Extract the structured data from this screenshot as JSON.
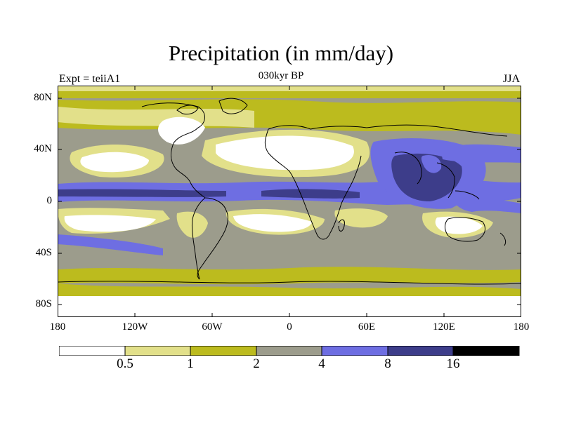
{
  "figure": {
    "title": "Precipitation (in mm/day)",
    "subtitle_left": "Expt = teiiA1",
    "subtitle_center": "030kyr BP",
    "subtitle_right": "JJA"
  },
  "axes": {
    "lat_ticks": [
      "80N",
      "40N",
      "0",
      "40S",
      "80S"
    ],
    "lon_ticks": [
      "180",
      "120W",
      "60W",
      "0",
      "60E",
      "120E",
      "180"
    ]
  },
  "colorbar": {
    "levels": [
      "0.5",
      "1",
      "2",
      "4",
      "8",
      "16"
    ],
    "colors": [
      "#ffffff",
      "#e2e08a",
      "#bcbb1e",
      "#9c9c8c",
      "#6e6ee2",
      "#3d3d8a",
      "#000000"
    ]
  }
}
